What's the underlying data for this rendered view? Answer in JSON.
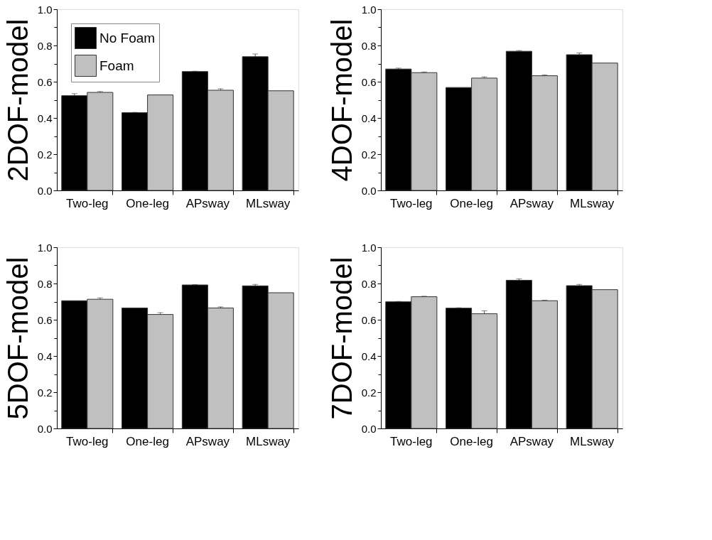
{
  "chart_data": [
    {
      "type": "bar",
      "ylabel": "2DOF-model",
      "categories": [
        "Two-leg",
        "One-leg",
        "APsway",
        "MLsway"
      ],
      "legend": "top left",
      "ylim": [
        0,
        1
      ],
      "yticks": [
        {
          "value": 0,
          "label": "0.0"
        },
        {
          "value": 0.1,
          "label": null
        },
        {
          "value": 0.2,
          "label": "0.2"
        },
        {
          "value": 0.3,
          "label": null
        },
        {
          "value": 0.4,
          "label": "0.4"
        },
        {
          "value": 0.5,
          "label": null
        },
        {
          "value": 0.6,
          "label": "0.6"
        },
        {
          "value": 0.7,
          "label": null
        },
        {
          "value": 0.8,
          "label": "0.8"
        },
        {
          "value": 0.9,
          "label": null
        },
        {
          "value": 1,
          "label": "1.0"
        }
      ],
      "grid": false,
      "series": [
        {
          "name": "No Foam",
          "color": "#000000",
          "values": [
            0.523,
            0.429,
            0.656,
            0.738
          ],
          "errors": [
            0.011,
            0.002,
            0.002,
            0.015
          ]
        },
        {
          "name": "Foam",
          "color": "#c0c0c0",
          "values": [
            0.541,
            0.527,
            0.553,
            0.55
          ],
          "errors": [
            0.005,
            null,
            0.008,
            null
          ]
        }
      ]
    },
    {
      "type": "bar",
      "ylabel": "4DOF-model",
      "categories": [
        "Two-leg",
        "One-leg",
        "APsway",
        "MLsway"
      ],
      "ylim": [
        0,
        1
      ],
      "yticks": [
        {
          "value": 0,
          "label": "0.0"
        },
        {
          "value": 0.1,
          "label": null
        },
        {
          "value": 0.2,
          "label": "0.2"
        },
        {
          "value": 0.3,
          "label": null
        },
        {
          "value": 0.4,
          "label": "0.4"
        },
        {
          "value": 0.5,
          "label": null
        },
        {
          "value": 0.6,
          "label": "0.6"
        },
        {
          "value": 0.7,
          "label": null
        },
        {
          "value": 0.8,
          "label": "0.8"
        },
        {
          "value": 0.9,
          "label": null
        },
        {
          "value": 1,
          "label": "1.0"
        }
      ],
      "grid": false,
      "series": [
        {
          "color": "#000000",
          "values": [
            0.67,
            0.568,
            0.768,
            0.749
          ],
          "errors": [
            0.005,
            null,
            0.004,
            0.01
          ]
        },
        {
          "color": "#c0c0c0",
          "values": [
            0.65,
            0.62,
            0.633,
            0.703
          ],
          "errors": [
            0.004,
            0.007,
            0.005,
            null
          ]
        }
      ]
    },
    {
      "type": "bar",
      "ylabel": "5DOF-model",
      "categories": [
        "Two-leg",
        "One-leg",
        "APsway",
        "MLsway"
      ],
      "ylim": [
        0,
        1
      ],
      "yticks": [
        {
          "value": 0,
          "label": "0.0"
        },
        {
          "value": 0.1,
          "label": null
        },
        {
          "value": 0.2,
          "label": "0.2"
        },
        {
          "value": 0.3,
          "label": null
        },
        {
          "value": 0.4,
          "label": "0.4"
        },
        {
          "value": 0.5,
          "label": null
        },
        {
          "value": 0.6,
          "label": "0.6"
        },
        {
          "value": 0.7,
          "label": null
        },
        {
          "value": 0.8,
          "label": "0.8"
        },
        {
          "value": 0.9,
          "label": null
        },
        {
          "value": 1,
          "label": "1.0"
        }
      ],
      "grid": false,
      "series": [
        {
          "color": "#000000",
          "values": [
            0.705,
            0.665,
            0.792,
            0.787
          ],
          "errors": [
            null,
            null,
            0.002,
            0.008
          ]
        },
        {
          "color": "#c0c0c0",
          "values": [
            0.713,
            0.629,
            0.665,
            0.749
          ],
          "errors": [
            0.008,
            0.01,
            0.006,
            null
          ]
        }
      ]
    },
    {
      "type": "bar",
      "ylabel": "7DOF-model",
      "categories": [
        "Two-leg",
        "One-leg",
        "APsway",
        "MLsway"
      ],
      "ylim": [
        0,
        1
      ],
      "yticks": [
        {
          "value": 0,
          "label": "0.0"
        },
        {
          "value": 0.1,
          "label": null
        },
        {
          "value": 0.2,
          "label": "0.2"
        },
        {
          "value": 0.3,
          "label": null
        },
        {
          "value": 0.4,
          "label": "0.4"
        },
        {
          "value": 0.5,
          "label": null
        },
        {
          "value": 0.6,
          "label": "0.6"
        },
        {
          "value": 0.7,
          "label": null
        },
        {
          "value": 0.8,
          "label": "0.8"
        },
        {
          "value": 0.9,
          "label": null
        },
        {
          "value": 1,
          "label": "1.0"
        }
      ],
      "grid": false,
      "series": [
        {
          "color": "#000000",
          "values": [
            0.699,
            0.664,
            0.818,
            0.788
          ],
          "errors": [
            0.002,
            0.002,
            0.008,
            0.007
          ]
        },
        {
          "color": "#c0c0c0",
          "values": [
            0.727,
            0.633,
            0.705,
            0.766
          ],
          "errors": [
            0.003,
            0.016,
            0.003,
            null
          ]
        }
      ]
    }
  ]
}
